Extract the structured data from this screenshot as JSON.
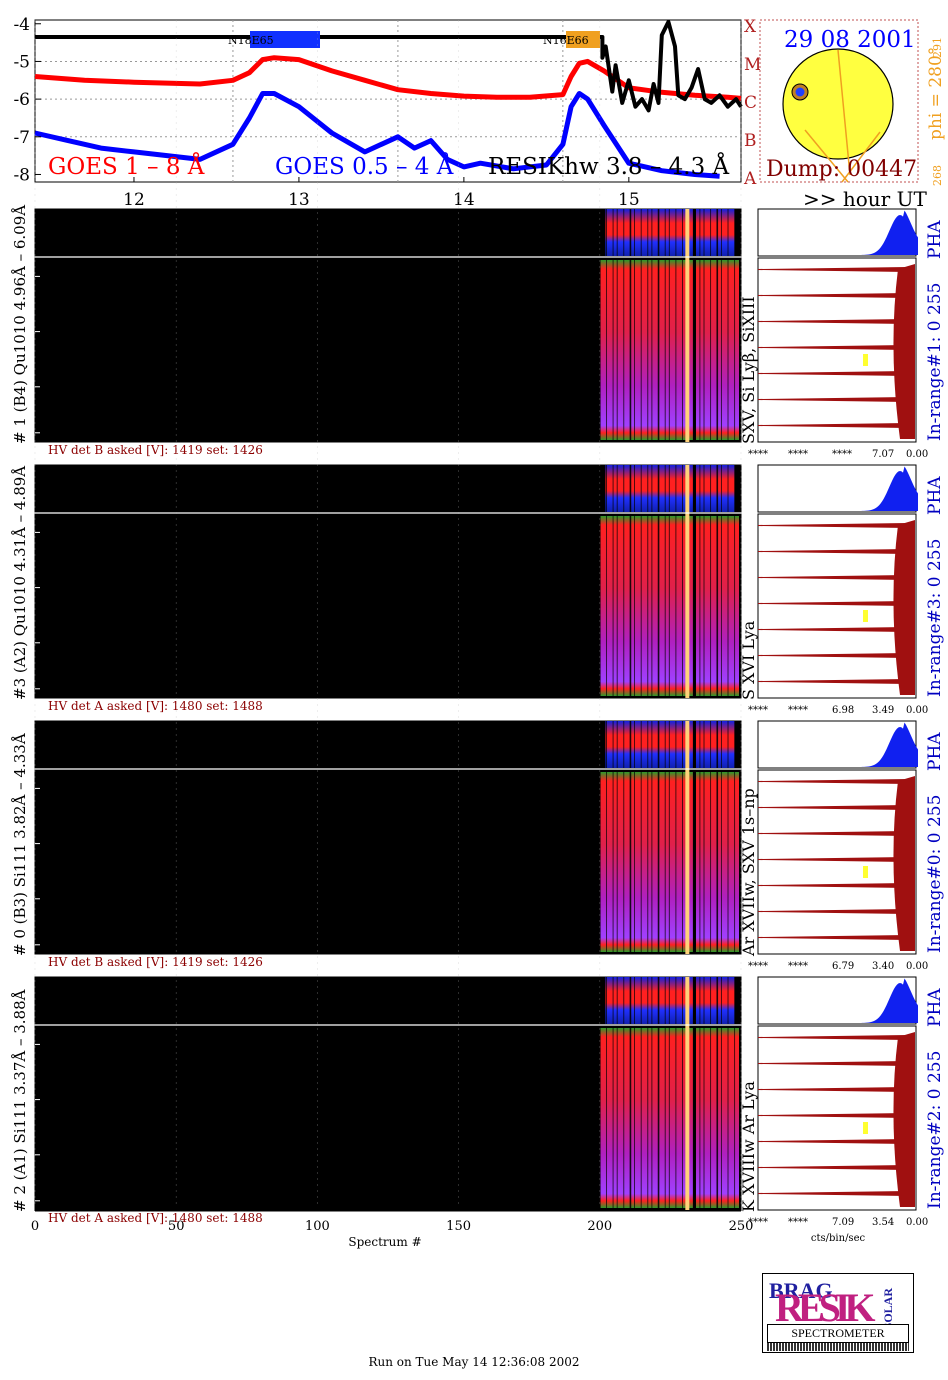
{
  "footer": "Run on Tue May 14 12:36:08 2002",
  "logo": {
    "letters": "RESIK",
    "sub": "BRAG",
    "sol": "SOLAR",
    "caption": "SPECTROMETER"
  },
  "goes": {
    "yticks": [
      "-4",
      "-5",
      "-6",
      "-7",
      "-8"
    ],
    "classes": [
      "X",
      "M",
      "C",
      "B",
      "A"
    ],
    "hours": [
      "12",
      "13",
      "14",
      "15"
    ],
    "hour_label": ">> hour UT",
    "legend_red": "GOES 1 – 8 Å",
    "legend_blue": "GOES 0.5 – 4 Å",
    "legend_black": "RESIKhw 3.8 – 4.3 Å",
    "ar1": "N18E65",
    "ar2": "N16E66"
  },
  "sun": {
    "date": "29 08 2001",
    "dump": "Dump: 00447",
    "phi": "phi = 280°",
    "n291": "291",
    "n268": "268"
  },
  "panels": [
    {
      "label": "# 1 (B4) Qu1010 4.96Å – 6.09Å",
      "lines": "SXV, Si Lyβ, SiXIII",
      "hv": "HV det B asked [V]:  1419 set:  1426",
      "range": "In-range#1:   0 255",
      "pha": "PHA",
      "ticks": [
        "****",
        "****",
        "****",
        "7.07",
        "0.00"
      ]
    },
    {
      "label": "#3 (A2) Qu1010  4.31Å – 4.89Å",
      "lines": "S XVI Lya",
      "hv": "HV det A asked [V]:  1480 set:  1488",
      "range": "In-range#3:   0 255",
      "pha": "PHA",
      "ticks": [
        "****",
        "****",
        "6.98",
        "3.49",
        "0.00"
      ]
    },
    {
      "label": "# 0 (B3) Si111  3.82Å – 4.33Å",
      "lines": "Ar XVIIw, SXV 1s–np",
      "hv": "HV det B asked [V]:  1419 set:  1426",
      "range": "In-range#0:   0 255",
      "pha": "PHA",
      "ticks": [
        "****",
        "****",
        "6.79",
        "3.40",
        "0.00"
      ]
    },
    {
      "label": "# 2 (A1) Si111  3.37Å – 3.88Å",
      "lines": "K XVIIIw   Ar Lya",
      "hv": "HV det A asked [V]:  1480 set:  1488",
      "range": "In-range#2:   0 255",
      "pha": "PHA",
      "ticks": [
        "****",
        "****",
        "7.09",
        "3.54",
        "0.00"
      ]
    }
  ],
  "spectrum_axis": {
    "ticks": [
      "0",
      "50",
      "100",
      "150",
      "200",
      "250"
    ],
    "label": "Spectrum #",
    "range": [
      0,
      250
    ]
  },
  "flux_axis_label": "cts/bin/sec",
  "chart_data": {
    "type": "line",
    "title": "",
    "xlabel": ">> hour UT",
    "ylabel": "",
    "xlim": [
      11.4,
      15.68
    ],
    "ylim": [
      -8.2,
      -3.9
    ],
    "series": [
      {
        "name": "GOES 1 – 8 Å",
        "color": "#ff0000",
        "x": [
          11.4,
          11.7,
          12.0,
          12.4,
          12.6,
          12.7,
          12.78,
          12.85,
          13.0,
          13.2,
          13.4,
          13.6,
          13.8,
          14.0,
          14.2,
          14.4,
          14.6,
          14.65,
          14.7,
          14.75,
          14.85,
          15.0,
          15.2,
          15.4,
          15.6,
          15.68
        ],
        "y": [
          -5.4,
          -5.5,
          -5.55,
          -5.6,
          -5.5,
          -5.3,
          -4.95,
          -4.9,
          -4.95,
          -5.25,
          -5.5,
          -5.75,
          -5.85,
          -5.92,
          -5.95,
          -5.95,
          -5.88,
          -5.4,
          -5.05,
          -5.0,
          -5.25,
          -5.7,
          -5.82,
          -5.9,
          -5.95,
          -5.98
        ]
      },
      {
        "name": "GOES 0.5 – 4 Å",
        "color": "#0000ff",
        "x": [
          11.4,
          11.6,
          11.8,
          12.0,
          12.2,
          12.4,
          12.6,
          12.7,
          12.78,
          12.85,
          13.0,
          13.2,
          13.4,
          13.5,
          13.6,
          13.7,
          13.8,
          13.9,
          14.0,
          14.1,
          14.3,
          14.5,
          14.6,
          14.65,
          14.7,
          14.75,
          14.85,
          15.0,
          15.2,
          15.4,
          15.55
        ],
        "y": [
          -6.9,
          -7.1,
          -7.3,
          -7.4,
          -7.5,
          -7.6,
          -7.2,
          -6.5,
          -5.85,
          -5.85,
          -6.2,
          -6.9,
          -7.4,
          -7.2,
          -7.0,
          -7.3,
          -7.1,
          -7.6,
          -7.8,
          -7.7,
          -7.85,
          -7.75,
          -7.2,
          -6.2,
          -5.85,
          -6.0,
          -6.7,
          -7.7,
          -7.9,
          -8.0,
          -8.05
        ]
      },
      {
        "name": "RESIKhw 3.8 – 4.3 Å",
        "color": "#000000",
        "x": [
          11.4,
          14.84,
          14.84,
          14.86,
          14.9,
          14.92,
          14.96,
          15.0,
          15.04,
          15.08,
          15.12,
          15.15,
          15.18,
          15.2,
          15.24,
          15.28,
          15.3,
          15.34,
          15.38,
          15.42,
          15.46,
          15.5,
          15.55,
          15.6,
          15.65,
          15.68
        ],
        "y": [
          -4.35,
          -4.35,
          -4.9,
          -4.6,
          -5.8,
          -5.1,
          -6.1,
          -5.5,
          -6.2,
          -6.0,
          -6.3,
          -5.6,
          -6.1,
          -4.3,
          -3.95,
          -4.6,
          -5.9,
          -6.0,
          -5.7,
          -5.2,
          -6.0,
          -6.1,
          -5.9,
          -6.2,
          -6.0,
          -6.2
        ]
      }
    ],
    "panels_counts_range": [
      0,
      255
    ]
  }
}
